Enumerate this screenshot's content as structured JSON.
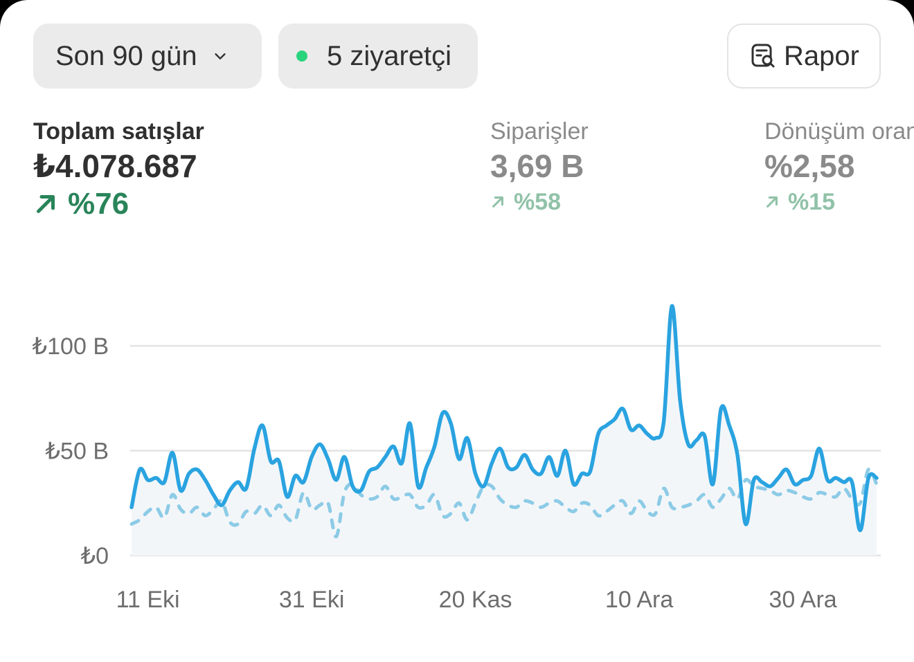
{
  "filters": {
    "range_label": "Son 90 gün",
    "visitors_label": "5 ziyaretçi",
    "report_label": "Rapor",
    "live_dot_color": "#29d47d"
  },
  "icons": {
    "range_chevron": "chevron-down-icon",
    "visitors_dot": "live-dot-icon",
    "report_icon": "report-search-icon",
    "trend_arrow": "arrow-up-right-icon"
  },
  "metrics": [
    {
      "label": "Toplam satışlar",
      "value": "₺4.078.687",
      "change": "%76"
    },
    {
      "label": "Siparişler",
      "value": "3,69 B",
      "change": "%58"
    },
    {
      "label": "Dönüşüm oranı",
      "value": "%2,58",
      "change": "%15"
    }
  ],
  "colors": {
    "positive": "#29845a",
    "positive_muted": "#91c2a8",
    "series_current": "#2aa3e0",
    "series_previous": "#8ccbe6",
    "grid": "#e3e3e3"
  },
  "chart_data": {
    "type": "line",
    "ylim": [
      0,
      100
    ],
    "yticks": [
      {
        "value": 0,
        "label": "₺0"
      },
      {
        "value": 50,
        "label": "₺50 B"
      },
      {
        "value": 100,
        "label": "₺100 B"
      }
    ],
    "x_start": "2025-10-09",
    "xticks": [
      {
        "date": "2025-10-11",
        "label": "11 Eki"
      },
      {
        "date": "2025-10-31",
        "label": "31 Eki"
      },
      {
        "date": "2025-11-20",
        "label": "20 Kas"
      },
      {
        "date": "2025-12-10",
        "label": "10 Ara"
      },
      {
        "date": "2025-12-30",
        "label": "30 Ara"
      }
    ],
    "series": [
      {
        "style": "solid",
        "values": [
          23,
          41,
          36,
          37,
          35,
          49,
          31,
          39,
          41,
          36,
          29,
          24,
          31,
          35,
          32,
          51,
          62,
          45,
          45,
          28,
          38,
          35,
          47,
          53,
          46,
          36,
          47,
          33,
          31,
          40,
          42,
          47,
          52,
          44,
          63,
          33,
          42,
          52,
          68,
          63,
          46,
          56,
          39,
          33,
          44,
          51,
          42,
          42,
          48,
          41,
          39,
          47,
          38,
          50,
          34,
          39,
          40,
          58,
          62,
          65,
          70,
          60,
          62,
          58,
          56,
          64,
          119,
          74,
          53,
          55,
          57,
          34,
          70,
          62,
          48,
          15,
          36,
          35,
          33,
          37,
          41,
          34,
          36,
          38,
          51,
          36,
          37,
          35,
          35,
          12,
          37,
          37
        ]
      },
      {
        "style": "dashed",
        "values": [
          15,
          17,
          21,
          23,
          18,
          29,
          22,
          20,
          23,
          19,
          22,
          26,
          16,
          15,
          21,
          20,
          24,
          19,
          24,
          18,
          17,
          30,
          22,
          24,
          25,
          9,
          30,
          34,
          29,
          27,
          28,
          33,
          27,
          28,
          29,
          23,
          24,
          29,
          19,
          20,
          25,
          17,
          25,
          33,
          33,
          27,
          24,
          23,
          26,
          25,
          23,
          25,
          26,
          23,
          21,
          25,
          24,
          19,
          21,
          24,
          26,
          20,
          26,
          21,
          20,
          32,
          23,
          23,
          24,
          26,
          29,
          23,
          27,
          32,
          27,
          36,
          33,
          32,
          31,
          29,
          31,
          30,
          28,
          27,
          30,
          29,
          28,
          32,
          27,
          25,
          41,
          34
        ]
      }
    ]
  }
}
